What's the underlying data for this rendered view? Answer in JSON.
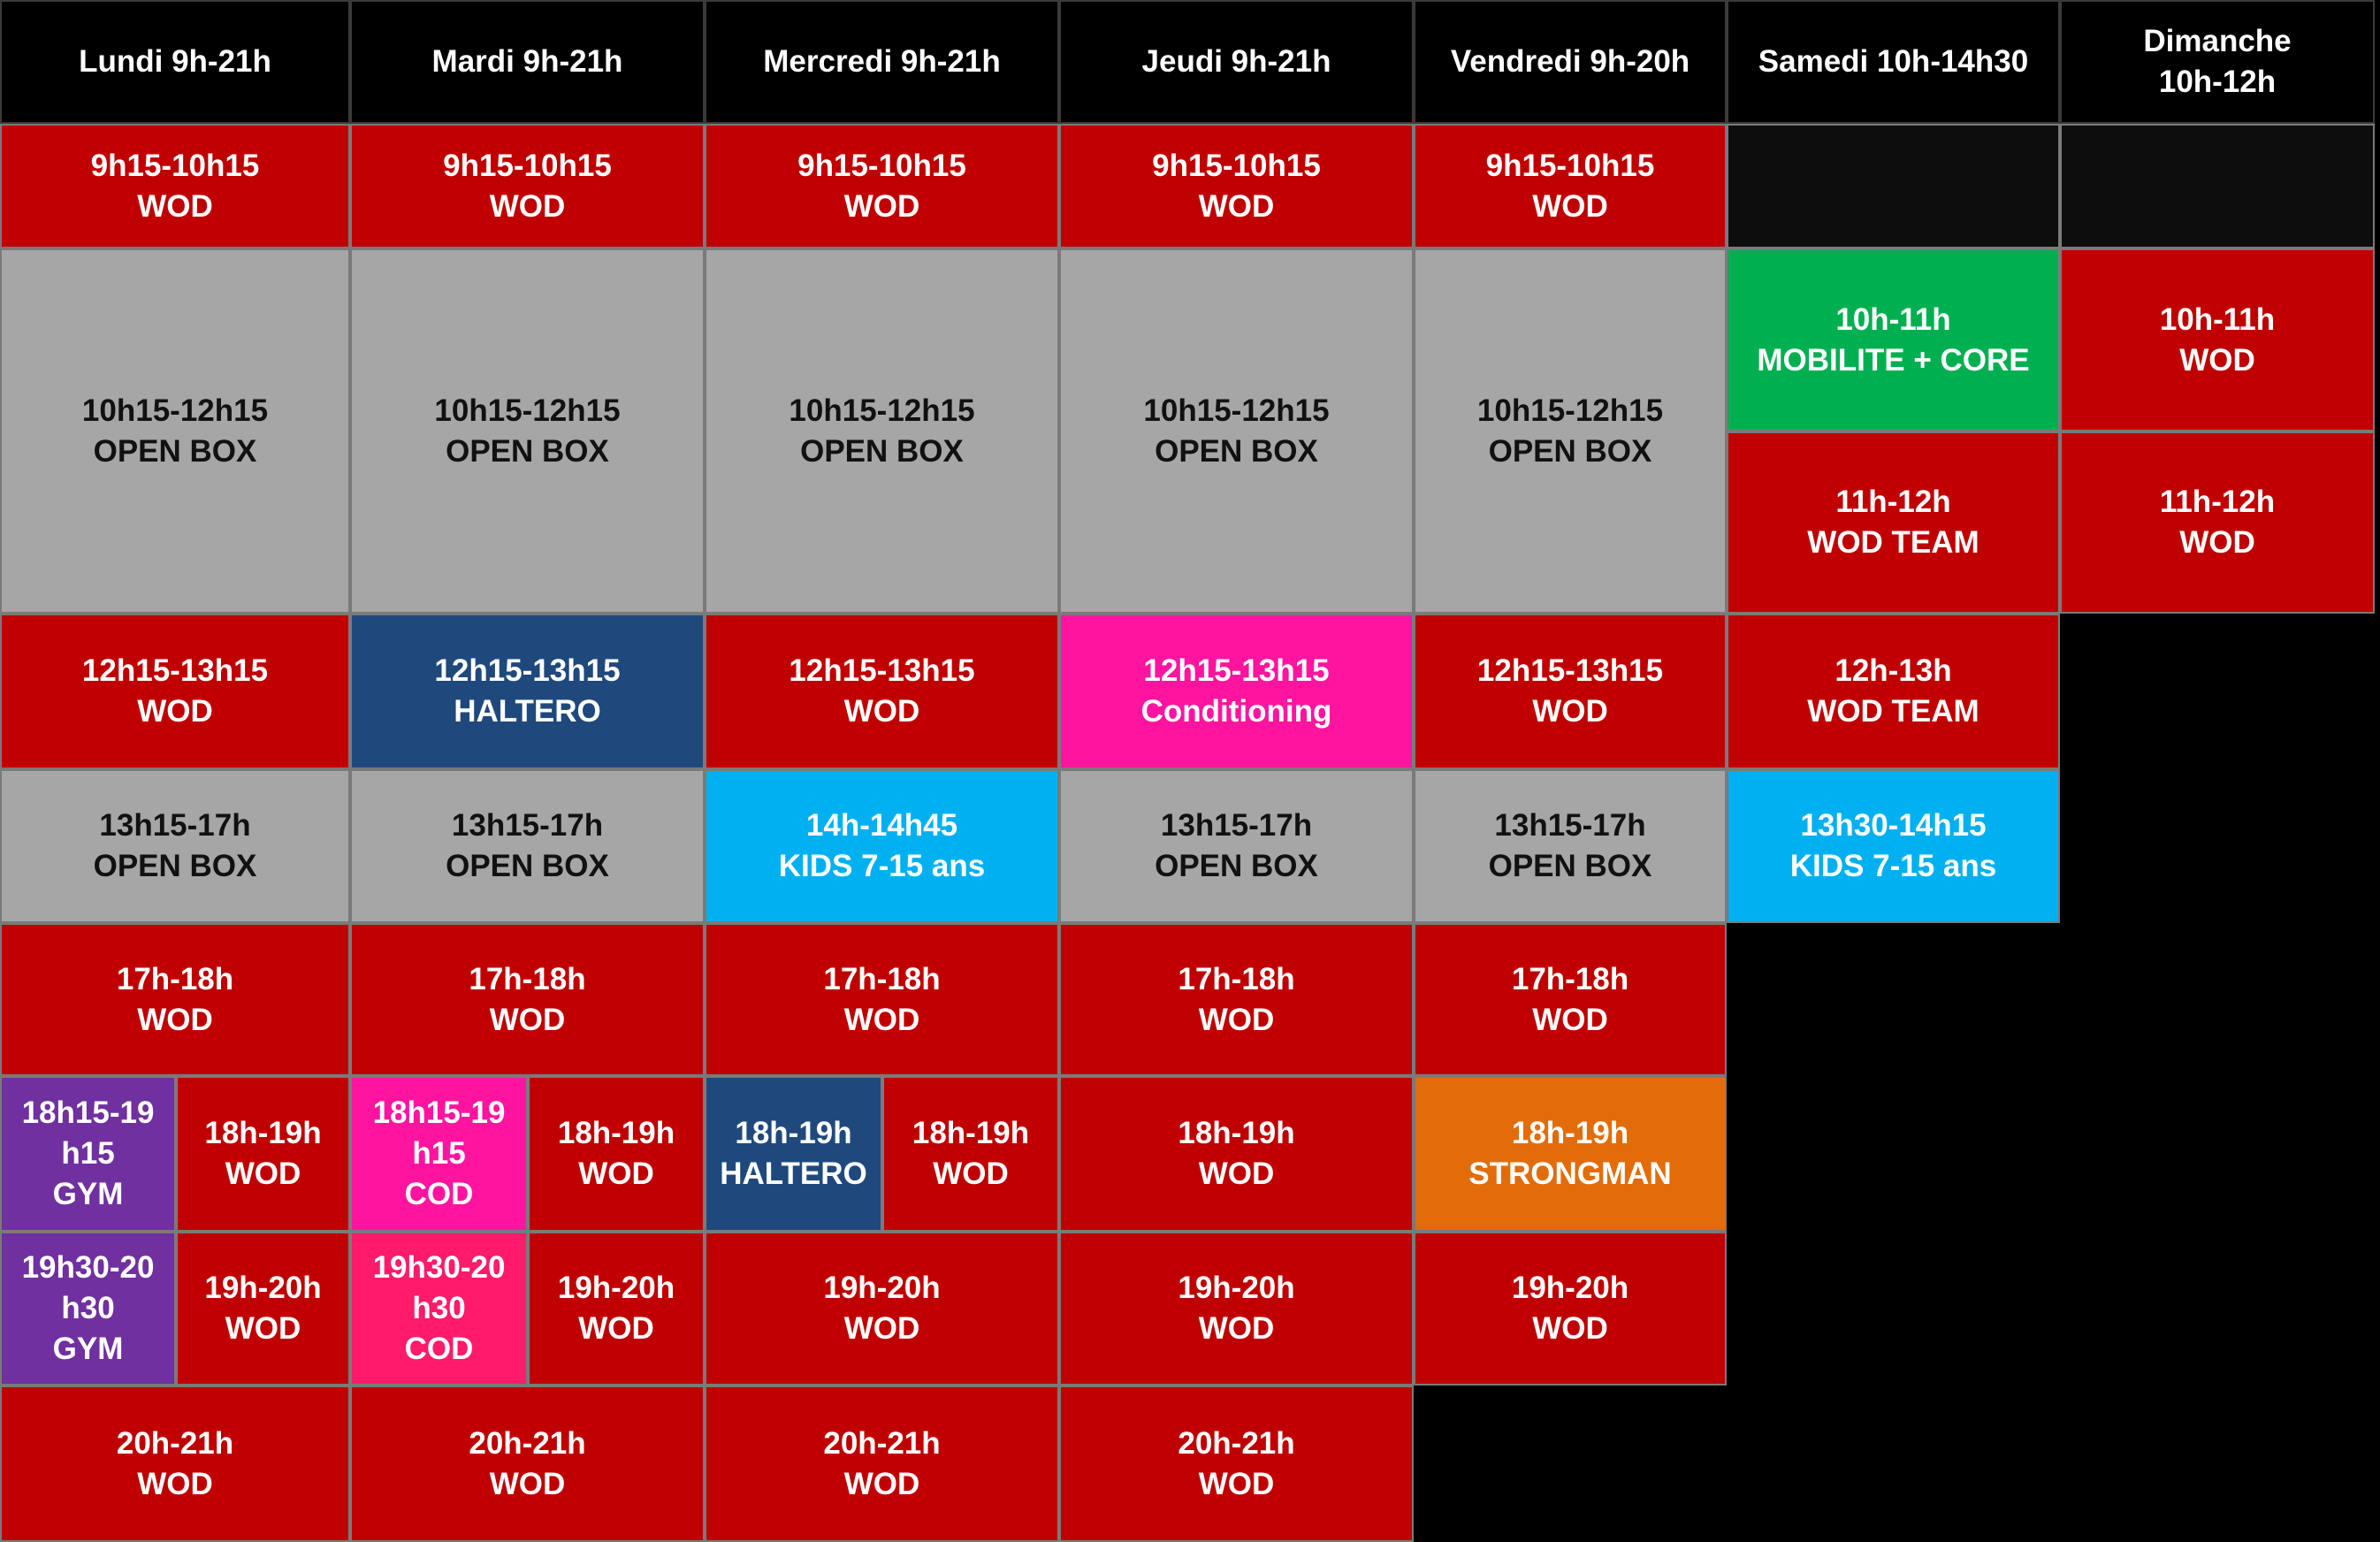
{
  "colors": {
    "header": "#000000",
    "wod": "#c00000",
    "open_box": "#a6a6a6",
    "empty": "#0d0d0d",
    "background": "#000000",
    "haltero": "#1f497d",
    "conditioning": "#ff14a0",
    "kids": "#00b0f0",
    "mobilite": "#00b050",
    "gym": "#7030a0",
    "cod_1": "#ff14a0",
    "cod_2": "#ff1a6c",
    "strongman": "#e36c0a"
  },
  "headers": [
    {
      "id": "lundi",
      "lines": [
        "Lundi 9h-21h"
      ]
    },
    {
      "id": "mardi",
      "lines": [
        "Mardi 9h-21h"
      ]
    },
    {
      "id": "mercredi",
      "lines": [
        "Mercredi 9h-21h"
      ]
    },
    {
      "id": "jeudi",
      "lines": [
        "Jeudi 9h-21h"
      ]
    },
    {
      "id": "vendredi",
      "lines": [
        "Vendredi 9h-20h"
      ]
    },
    {
      "id": "samedi",
      "lines": [
        "Samedi 10h-14h30"
      ]
    },
    {
      "id": "dimanche",
      "lines": [
        "Dimanche",
        "10h-12h"
      ]
    }
  ],
  "sessions": [
    {
      "day": "lundi",
      "lines": [
        "9h15-10h15",
        "WOD"
      ],
      "color": "wod"
    },
    {
      "day": "mardi",
      "lines": [
        "9h15-10h15",
        "WOD"
      ],
      "color": "wod"
    },
    {
      "day": "mercredi",
      "lines": [
        "9h15-10h15",
        "WOD"
      ],
      "color": "wod"
    },
    {
      "day": "jeudi",
      "lines": [
        "9h15-10h15",
        "WOD"
      ],
      "color": "wod"
    },
    {
      "day": "vendredi",
      "lines": [
        "9h15-10h15",
        "WOD"
      ],
      "color": "wod"
    },
    {
      "day": "samedi",
      "lines": [],
      "color": "empty"
    },
    {
      "day": "dimanche",
      "lines": [],
      "color": "empty"
    },
    {
      "day": "lundi",
      "lines": [
        "10h15-12h15",
        "OPEN BOX"
      ],
      "color": "open_box"
    },
    {
      "day": "mardi",
      "lines": [
        "10h15-12h15",
        "OPEN BOX"
      ],
      "color": "open_box"
    },
    {
      "day": "mercredi",
      "lines": [
        "10h15-12h15",
        "OPEN BOX"
      ],
      "color": "open_box"
    },
    {
      "day": "jeudi",
      "lines": [
        "10h15-12h15",
        "OPEN BOX"
      ],
      "color": "open_box"
    },
    {
      "day": "vendredi",
      "lines": [
        "10h15-12h15",
        "OPEN BOX"
      ],
      "color": "open_box"
    },
    {
      "day": "samedi",
      "lines": [
        "10h-11h",
        "MOBILITE + CORE"
      ],
      "color": "mobilite"
    },
    {
      "day": "samedi",
      "lines": [
        "11h-12h",
        "WOD TEAM"
      ],
      "color": "wod"
    },
    {
      "day": "dimanche",
      "lines": [
        "10h-11h",
        "WOD"
      ],
      "color": "wod"
    },
    {
      "day": "dimanche",
      "lines": [
        "11h-12h",
        "WOD"
      ],
      "color": "wod"
    },
    {
      "day": "lundi",
      "lines": [
        "12h15-13h15",
        "WOD"
      ],
      "color": "wod"
    },
    {
      "day": "mardi",
      "lines": [
        "12h15-13h15",
        "HALTERO"
      ],
      "color": "haltero"
    },
    {
      "day": "mercredi",
      "lines": [
        "12h15-13h15",
        "WOD"
      ],
      "color": "wod"
    },
    {
      "day": "jeudi",
      "lines": [
        "12h15-13h15",
        "Conditioning"
      ],
      "color": "conditioning"
    },
    {
      "day": "vendredi",
      "lines": [
        "12h15-13h15",
        "WOD"
      ],
      "color": "wod"
    },
    {
      "day": "samedi",
      "lines": [
        "12h-13h",
        "WOD TEAM"
      ],
      "color": "wod"
    },
    {
      "day": "lundi",
      "lines": [
        "13h15-17h",
        "OPEN BOX"
      ],
      "color": "open_box"
    },
    {
      "day": "mardi",
      "lines": [
        "13h15-17h",
        "OPEN BOX"
      ],
      "color": "open_box"
    },
    {
      "day": "mercredi",
      "lines": [
        "14h-14h45",
        "KIDS 7-15 ans"
      ],
      "color": "kids"
    },
    {
      "day": "jeudi",
      "lines": [
        "13h15-17h",
        "OPEN BOX"
      ],
      "color": "open_box"
    },
    {
      "day": "vendredi",
      "lines": [
        "13h15-17h",
        "OPEN BOX"
      ],
      "color": "open_box"
    },
    {
      "day": "samedi",
      "lines": [
        "13h30-14h15",
        "KIDS 7-15 ans"
      ],
      "color": "kids"
    },
    {
      "day": "lundi",
      "lines": [
        "17h-18h",
        "WOD"
      ],
      "color": "wod"
    },
    {
      "day": "mardi",
      "lines": [
        "17h-18h",
        "WOD"
      ],
      "color": "wod"
    },
    {
      "day": "mercredi",
      "lines": [
        "17h-18h",
        "WOD"
      ],
      "color": "wod"
    },
    {
      "day": "jeudi",
      "lines": [
        "17h-18h",
        "WOD"
      ],
      "color": "wod"
    },
    {
      "day": "vendredi",
      "lines": [
        "17h-18h",
        "WOD"
      ],
      "color": "wod"
    },
    {
      "day": "lundi",
      "lines": [
        "18h15-19",
        "h15",
        "GYM"
      ],
      "color": "gym"
    },
    {
      "day": "lundi",
      "lines": [
        "18h-19h",
        "WOD"
      ],
      "color": "wod"
    },
    {
      "day": "mardi",
      "lines": [
        "18h15-19",
        "h15",
        "COD"
      ],
      "color": "cod_1"
    },
    {
      "day": "mardi",
      "lines": [
        "18h-19h",
        "WOD"
      ],
      "color": "wod"
    },
    {
      "day": "mercredi",
      "lines": [
        "18h-19h",
        "HALTERO"
      ],
      "color": "haltero"
    },
    {
      "day": "mercredi",
      "lines": [
        "18h-19h",
        "WOD"
      ],
      "color": "wod"
    },
    {
      "day": "jeudi",
      "lines": [
        "18h-19h",
        "WOD"
      ],
      "color": "wod"
    },
    {
      "day": "vendredi",
      "lines": [
        "18h-19h",
        "STRONGMAN"
      ],
      "color": "strongman"
    },
    {
      "day": "lundi",
      "lines": [
        "19h30-20",
        "h30",
        "GYM"
      ],
      "color": "gym"
    },
    {
      "day": "lundi",
      "lines": [
        "19h-20h",
        "WOD"
      ],
      "color": "wod"
    },
    {
      "day": "mardi",
      "lines": [
        "19h30-20",
        "h30",
        "COD"
      ],
      "color": "cod_2"
    },
    {
      "day": "mardi",
      "lines": [
        "19h-20h",
        "WOD"
      ],
      "color": "wod"
    },
    {
      "day": "mercredi",
      "lines": [
        "19h-20h",
        "WOD"
      ],
      "color": "wod"
    },
    {
      "day": "jeudi",
      "lines": [
        "19h-20h",
        "WOD"
      ],
      "color": "wod"
    },
    {
      "day": "vendredi",
      "lines": [
        "19h-20h",
        "WOD"
      ],
      "color": "wod"
    },
    {
      "day": "lundi",
      "lines": [
        "20h-21h",
        "WOD"
      ],
      "color": "wod"
    },
    {
      "day": "mardi",
      "lines": [
        "20h-21h",
        "WOD"
      ],
      "color": "wod"
    },
    {
      "day": "mercredi",
      "lines": [
        "20h-21h",
        "WOD"
      ],
      "color": "wod"
    },
    {
      "day": "jeudi",
      "lines": [
        "20h-21h",
        "WOD"
      ],
      "color": "wod"
    }
  ]
}
